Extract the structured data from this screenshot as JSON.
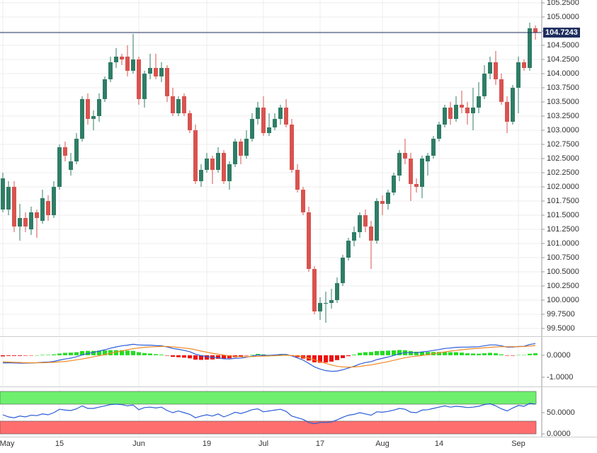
{
  "chart_data": [
    {
      "type": "candlestick",
      "categories": [
        "May",
        null,
        null,
        null,
        null,
        null,
        null,
        null,
        null,
        null,
        "15",
        null,
        null,
        null,
        null,
        null,
        null,
        null,
        null,
        null,
        null,
        null,
        null,
        null,
        "Jun",
        null,
        null,
        null,
        null,
        null,
        null,
        null,
        null,
        null,
        null,
        null,
        "19",
        null,
        null,
        null,
        null,
        null,
        null,
        null,
        null,
        null,
        "Jul",
        null,
        null,
        null,
        null,
        null,
        null,
        null,
        null,
        null,
        "17",
        null,
        null,
        null,
        null,
        null,
        null,
        null,
        null,
        null,
        null,
        "Aug",
        null,
        null,
        null,
        null,
        null,
        null,
        null,
        null,
        null,
        "14",
        null,
        null,
        null,
        null,
        null,
        null,
        null,
        null,
        null,
        null,
        null,
        null,
        null,
        "Sep",
        null,
        null,
        null
      ],
      "ohlc": [
        [
          101.6,
          102.25,
          101.55,
          102.15
        ],
        [
          101.6,
          102.1,
          101.5,
          102.0
        ],
        [
          102.0,
          102.1,
          101.2,
          101.3
        ],
        [
          101.3,
          101.7,
          101.05,
          101.45
        ],
        [
          101.45,
          101.55,
          101.2,
          101.3
        ],
        [
          101.25,
          101.65,
          101.15,
          101.55
        ],
        [
          101.55,
          101.6,
          101.1,
          101.45
        ],
        [
          101.4,
          101.95,
          101.35,
          101.8
        ],
        [
          101.75,
          101.85,
          101.4,
          101.5
        ],
        [
          101.5,
          102.1,
          101.45,
          102.0
        ],
        [
          102.0,
          102.75,
          101.95,
          102.7
        ],
        [
          102.7,
          102.8,
          102.45,
          102.55
        ],
        [
          102.3,
          102.6,
          102.2,
          102.45
        ],
        [
          102.45,
          102.95,
          102.4,
          102.85
        ],
        [
          102.85,
          103.6,
          102.8,
          103.55
        ],
        [
          103.55,
          103.65,
          103.1,
          103.2
        ],
        [
          103.2,
          103.35,
          103.0,
          103.25
        ],
        [
          103.25,
          103.65,
          103.15,
          103.55
        ],
        [
          103.55,
          103.95,
          103.5,
          103.9
        ],
        [
          103.9,
          104.3,
          103.85,
          104.2
        ],
        [
          104.2,
          104.45,
          104.1,
          104.3
        ],
        [
          104.3,
          104.35,
          104.15,
          104.25
        ],
        [
          104.3,
          104.5,
          103.95,
          104.05
        ],
        [
          104.05,
          104.7,
          104.0,
          104.25
        ],
        [
          104.25,
          104.3,
          103.45,
          103.55
        ],
        [
          103.55,
          104.05,
          103.4,
          104.0
        ],
        [
          104.0,
          104.35,
          103.9,
          104.1
        ],
        [
          104.1,
          104.35,
          103.9,
          103.95
        ],
        [
          103.95,
          104.2,
          103.85,
          104.1
        ],
        [
          104.1,
          104.15,
          103.5,
          103.6
        ],
        [
          103.6,
          103.75,
          103.25,
          103.3
        ],
        [
          103.3,
          103.6,
          103.25,
          103.55
        ],
        [
          103.6,
          103.65,
          103.25,
          103.3
        ],
        [
          103.3,
          103.35,
          102.95,
          103.0
        ],
        [
          103.0,
          103.1,
          102.05,
          102.1
        ],
        [
          102.1,
          102.4,
          102.0,
          102.3
        ],
        [
          102.3,
          102.6,
          102.25,
          102.5
        ],
        [
          102.5,
          102.55,
          102.05,
          102.3
        ],
        [
          102.3,
          102.7,
          102.25,
          102.6
        ],
        [
          102.6,
          102.65,
          102.05,
          102.1
        ],
        [
          102.1,
          102.45,
          101.95,
          102.4
        ],
        [
          102.4,
          102.85,
          102.35,
          102.8
        ],
        [
          102.8,
          102.85,
          102.4,
          102.55
        ],
        [
          102.55,
          103.0,
          102.5,
          102.85
        ],
        [
          102.85,
          103.3,
          102.8,
          103.2
        ],
        [
          103.2,
          103.5,
          103.1,
          103.4
        ],
        [
          103.4,
          103.6,
          102.9,
          102.95
        ],
        [
          102.95,
          103.3,
          102.9,
          103.05
        ],
        [
          103.05,
          103.3,
          103.0,
          103.2
        ],
        [
          103.2,
          103.45,
          103.1,
          103.4
        ],
        [
          103.4,
          103.55,
          103.05,
          103.1
        ],
        [
          103.1,
          103.2,
          102.25,
          102.3
        ],
        [
          102.3,
          102.4,
          101.9,
          101.95
        ],
        [
          101.95,
          102.0,
          101.5,
          101.55
        ],
        [
          101.55,
          101.65,
          100.5,
          100.55
        ],
        [
          100.55,
          100.6,
          99.75,
          99.8
        ],
        [
          99.8,
          100.05,
          99.65,
          99.95
        ],
        [
          99.95,
          100.15,
          99.6,
          99.95
        ],
        [
          99.95,
          100.2,
          99.85,
          100.0
        ],
        [
          100.0,
          100.4,
          99.95,
          100.3
        ],
        [
          100.3,
          100.8,
          100.25,
          100.75
        ],
        [
          100.75,
          101.1,
          100.7,
          101.05
        ],
        [
          101.05,
          101.3,
          100.95,
          101.2
        ],
        [
          101.2,
          101.55,
          101.1,
          101.5
        ],
        [
          101.5,
          101.6,
          101.2,
          101.3
        ],
        [
          101.3,
          101.4,
          100.55,
          101.05
        ],
        [
          101.05,
          101.8,
          101.0,
          101.75
        ],
        [
          101.75,
          101.85,
          101.5,
          101.7
        ],
        [
          101.7,
          101.95,
          101.6,
          101.9
        ],
        [
          101.9,
          102.25,
          101.85,
          102.2
        ],
        [
          102.2,
          102.65,
          102.1,
          102.6
        ],
        [
          102.6,
          102.85,
          102.4,
          102.5
        ],
        [
          102.5,
          102.6,
          101.75,
          102.05
        ],
        [
          102.05,
          102.15,
          101.9,
          102.0
        ],
        [
          102.0,
          102.55,
          101.8,
          102.5
        ],
        [
          102.45,
          102.6,
          102.2,
          102.55
        ],
        [
          102.55,
          102.9,
          102.5,
          102.85
        ],
        [
          102.85,
          103.15,
          102.8,
          103.1
        ],
        [
          103.1,
          103.45,
          103.05,
          103.4
        ],
        [
          103.4,
          103.5,
          103.1,
          103.2
        ],
        [
          103.2,
          103.6,
          103.15,
          103.45
        ],
        [
          103.45,
          103.7,
          103.3,
          103.4
        ],
        [
          103.4,
          103.5,
          103.1,
          103.3
        ],
        [
          103.3,
          103.75,
          103.0,
          103.4
        ],
        [
          103.4,
          103.85,
          103.3,
          103.6
        ],
        [
          103.6,
          104.15,
          103.55,
          104.0
        ],
        [
          104.0,
          104.3,
          103.9,
          104.2
        ],
        [
          104.2,
          104.4,
          103.8,
          103.9
        ],
        [
          103.9,
          104.0,
          103.45,
          103.5
        ],
        [
          103.5,
          103.6,
          102.95,
          103.15
        ],
        [
          103.15,
          103.8,
          103.1,
          103.75
        ],
        [
          103.75,
          104.3,
          103.3,
          104.2
        ],
        [
          104.2,
          104.25,
          104.05,
          104.1
        ],
        [
          104.1,
          104.9,
          104.05,
          104.8
        ],
        [
          104.8,
          104.85,
          104.6,
          104.7243
        ]
      ],
      "up_color": "#2f7d66",
      "down_color": "#d9534f",
      "last_price_color": "#1e2e5e",
      "ylim": [
        99.3625,
        105.3
      ],
      "yticks": [
        {
          "value": 99.5,
          "label": "99.5000"
        },
        {
          "value": 99.75,
          "label": "99.7500"
        },
        {
          "value": 100,
          "label": "100.0000"
        },
        {
          "value": 100.25,
          "label": "100.2500"
        },
        {
          "value": 100.5,
          "label": "100.5000"
        },
        {
          "value": 100.75,
          "label": "100.7500"
        },
        {
          "value": 101,
          "label": "101.0000"
        },
        {
          "value": 101.25,
          "label": "101.2500"
        },
        {
          "value": 101.5,
          "label": "101.5000"
        },
        {
          "value": 101.75,
          "label": "101.7500"
        },
        {
          "value": 102,
          "label": "102.0000"
        },
        {
          "value": 102.25,
          "label": "102.2500"
        },
        {
          "value": 102.5,
          "label": "102.5000"
        },
        {
          "value": 102.75,
          "label": "102.7500"
        },
        {
          "value": 103,
          "label": "103.0000"
        },
        {
          "value": 103.25,
          "label": "103.2500"
        },
        {
          "value": 103.5,
          "label": "103.5000"
        },
        {
          "value": 103.75,
          "label": "103.7500"
        },
        {
          "value": 104,
          "label": "104.0000"
        },
        {
          "value": 104.25,
          "label": "104.2500"
        },
        {
          "value": 104.5,
          "label": "104.5000"
        },
        {
          "value": 104.75,
          "label": "104.7500"
        },
        {
          "value": 105,
          "label": "105.0000"
        },
        {
          "value": 105.25,
          "label": "105.2500"
        }
      ],
      "grid": true
    },
    {
      "type": "macd",
      "series": [
        {
          "color": "#2b5cd6",
          "values": [
            -0.35,
            -0.34,
            -0.35,
            -0.36,
            -0.36,
            -0.35,
            -0.34,
            -0.32,
            -0.31,
            -0.28,
            -0.22,
            -0.17,
            -0.13,
            -0.07,
            0.02,
            0.08,
            0.13,
            0.19,
            0.25,
            0.32,
            0.38,
            0.43,
            0.46,
            0.5,
            0.47,
            0.46,
            0.46,
            0.44,
            0.43,
            0.38,
            0.31,
            0.27,
            0.22,
            0.16,
            0.05,
            -0.02,
            -0.06,
            -0.1,
            -0.11,
            -0.16,
            -0.17,
            -0.14,
            -0.13,
            -0.09,
            -0.04,
            0.01,
            0.0,
            -0.01,
            0.01,
            0.04,
            0.04,
            -0.03,
            -0.12,
            -0.22,
            -0.37,
            -0.53,
            -0.63,
            -0.7,
            -0.73,
            -0.72,
            -0.66,
            -0.58,
            -0.5,
            -0.4,
            -0.33,
            -0.29,
            -0.2,
            -0.14,
            -0.08,
            -0.01,
            0.07,
            0.12,
            0.12,
            0.12,
            0.15,
            0.18,
            0.22,
            0.26,
            0.31,
            0.33,
            0.36,
            0.37,
            0.37,
            0.38,
            0.39,
            0.43,
            0.47,
            0.47,
            0.43,
            0.37,
            0.37,
            0.4,
            0.41,
            0.49,
            0.53
          ]
        },
        {
          "color": "#f08a24",
          "values": [
            -0.3,
            -0.31,
            -0.32,
            -0.33,
            -0.34,
            -0.34,
            -0.34,
            -0.34,
            -0.33,
            -0.32,
            -0.3,
            -0.28,
            -0.25,
            -0.21,
            -0.17,
            -0.12,
            -0.07,
            -0.02,
            0.03,
            0.09,
            0.15,
            0.2,
            0.25,
            0.3,
            0.33,
            0.36,
            0.38,
            0.39,
            0.4,
            0.4,
            0.38,
            0.36,
            0.33,
            0.3,
            0.25,
            0.19,
            0.14,
            0.09,
            0.05,
            0.01,
            -0.03,
            -0.05,
            -0.07,
            -0.07,
            -0.06,
            -0.05,
            -0.04,
            -0.03,
            -0.02,
            -0.01,
            0.0,
            -0.01,
            -0.03,
            -0.07,
            -0.13,
            -0.21,
            -0.29,
            -0.37,
            -0.44,
            -0.5,
            -0.53,
            -0.54,
            -0.53,
            -0.51,
            -0.47,
            -0.44,
            -0.39,
            -0.34,
            -0.29,
            -0.23,
            -0.17,
            -0.11,
            -0.07,
            -0.04,
            -0.01,
            0.03,
            0.07,
            0.11,
            0.15,
            0.19,
            0.22,
            0.25,
            0.28,
            0.3,
            0.32,
            0.34,
            0.36,
            0.38,
            0.39,
            0.39,
            0.39,
            0.39,
            0.4,
            0.42,
            0.44
          ]
        }
      ],
      "histogram": [
        -0.05,
        -0.03,
        -0.03,
        -0.03,
        -0.02,
        -0.01,
        0.0,
        0.02,
        0.02,
        0.04,
        0.08,
        0.11,
        0.12,
        0.14,
        0.19,
        0.2,
        0.2,
        0.21,
        0.22,
        0.23,
        0.23,
        0.23,
        0.21,
        0.2,
        0.14,
        0.1,
        0.08,
        0.05,
        0.03,
        -0.02,
        -0.07,
        -0.09,
        -0.11,
        -0.14,
        -0.2,
        -0.21,
        -0.2,
        -0.19,
        -0.16,
        -0.17,
        -0.14,
        -0.09,
        -0.06,
        -0.02,
        0.02,
        0.06,
        0.04,
        0.02,
        0.03,
        0.05,
        0.04,
        -0.02,
        -0.09,
        -0.15,
        -0.24,
        -0.32,
        -0.34,
        -0.33,
        -0.29,
        -0.22,
        -0.13,
        -0.04,
        0.03,
        0.11,
        0.14,
        0.15,
        0.19,
        0.2,
        0.21,
        0.22,
        0.24,
        0.23,
        0.19,
        0.16,
        0.16,
        0.15,
        0.15,
        0.15,
        0.16,
        0.14,
        0.14,
        0.12,
        0.09,
        0.08,
        0.07,
        0.09,
        0.11,
        0.09,
        0.04,
        -0.02,
        -0.02,
        0.01,
        0.01,
        0.07,
        0.09
      ],
      "up_color": "#22dd22",
      "down_color": "#ee1111",
      "ylim": [
        -1.42,
        0.77
      ],
      "yticks": [
        {
          "value": 0,
          "label": "0.0000"
        },
        {
          "value": -1,
          "label": "-1.0000"
        }
      ]
    },
    {
      "type": "rsi",
      "series": [
        {
          "color": "#2b5cd6",
          "values": [
            45,
            40,
            38,
            42,
            40,
            44,
            43,
            47,
            45,
            50,
            58,
            56,
            55,
            59,
            66,
            60,
            60,
            63,
            66,
            69,
            70,
            69,
            66,
            68,
            57,
            62,
            63,
            61,
            63,
            55,
            50,
            54,
            50,
            46,
            38,
            42,
            45,
            42,
            47,
            40,
            45,
            51,
            48,
            52,
            57,
            59,
            52,
            54,
            56,
            58,
            53,
            42,
            38,
            34,
            27,
            24,
            27,
            27,
            28,
            33,
            39,
            44,
            46,
            50,
            47,
            44,
            52,
            51,
            53,
            56,
            60,
            58,
            51,
            50,
            56,
            57,
            60,
            63,
            66,
            63,
            65,
            64,
            62,
            63,
            65,
            69,
            71,
            66,
            59,
            54,
            61,
            67,
            65,
            72,
            70
          ]
        }
      ],
      "zones": [
        {
          "from": 70,
          "to": 100,
          "color": "#6ef06e"
        },
        {
          "from": 0,
          "to": 30,
          "color": "#ff6e6e"
        }
      ],
      "ylim": [
        -6.67,
        106.67
      ],
      "yticks": [
        {
          "value": 50,
          "label": "50.0000"
        },
        {
          "value": 0,
          "label": "0.0000"
        }
      ]
    }
  ]
}
